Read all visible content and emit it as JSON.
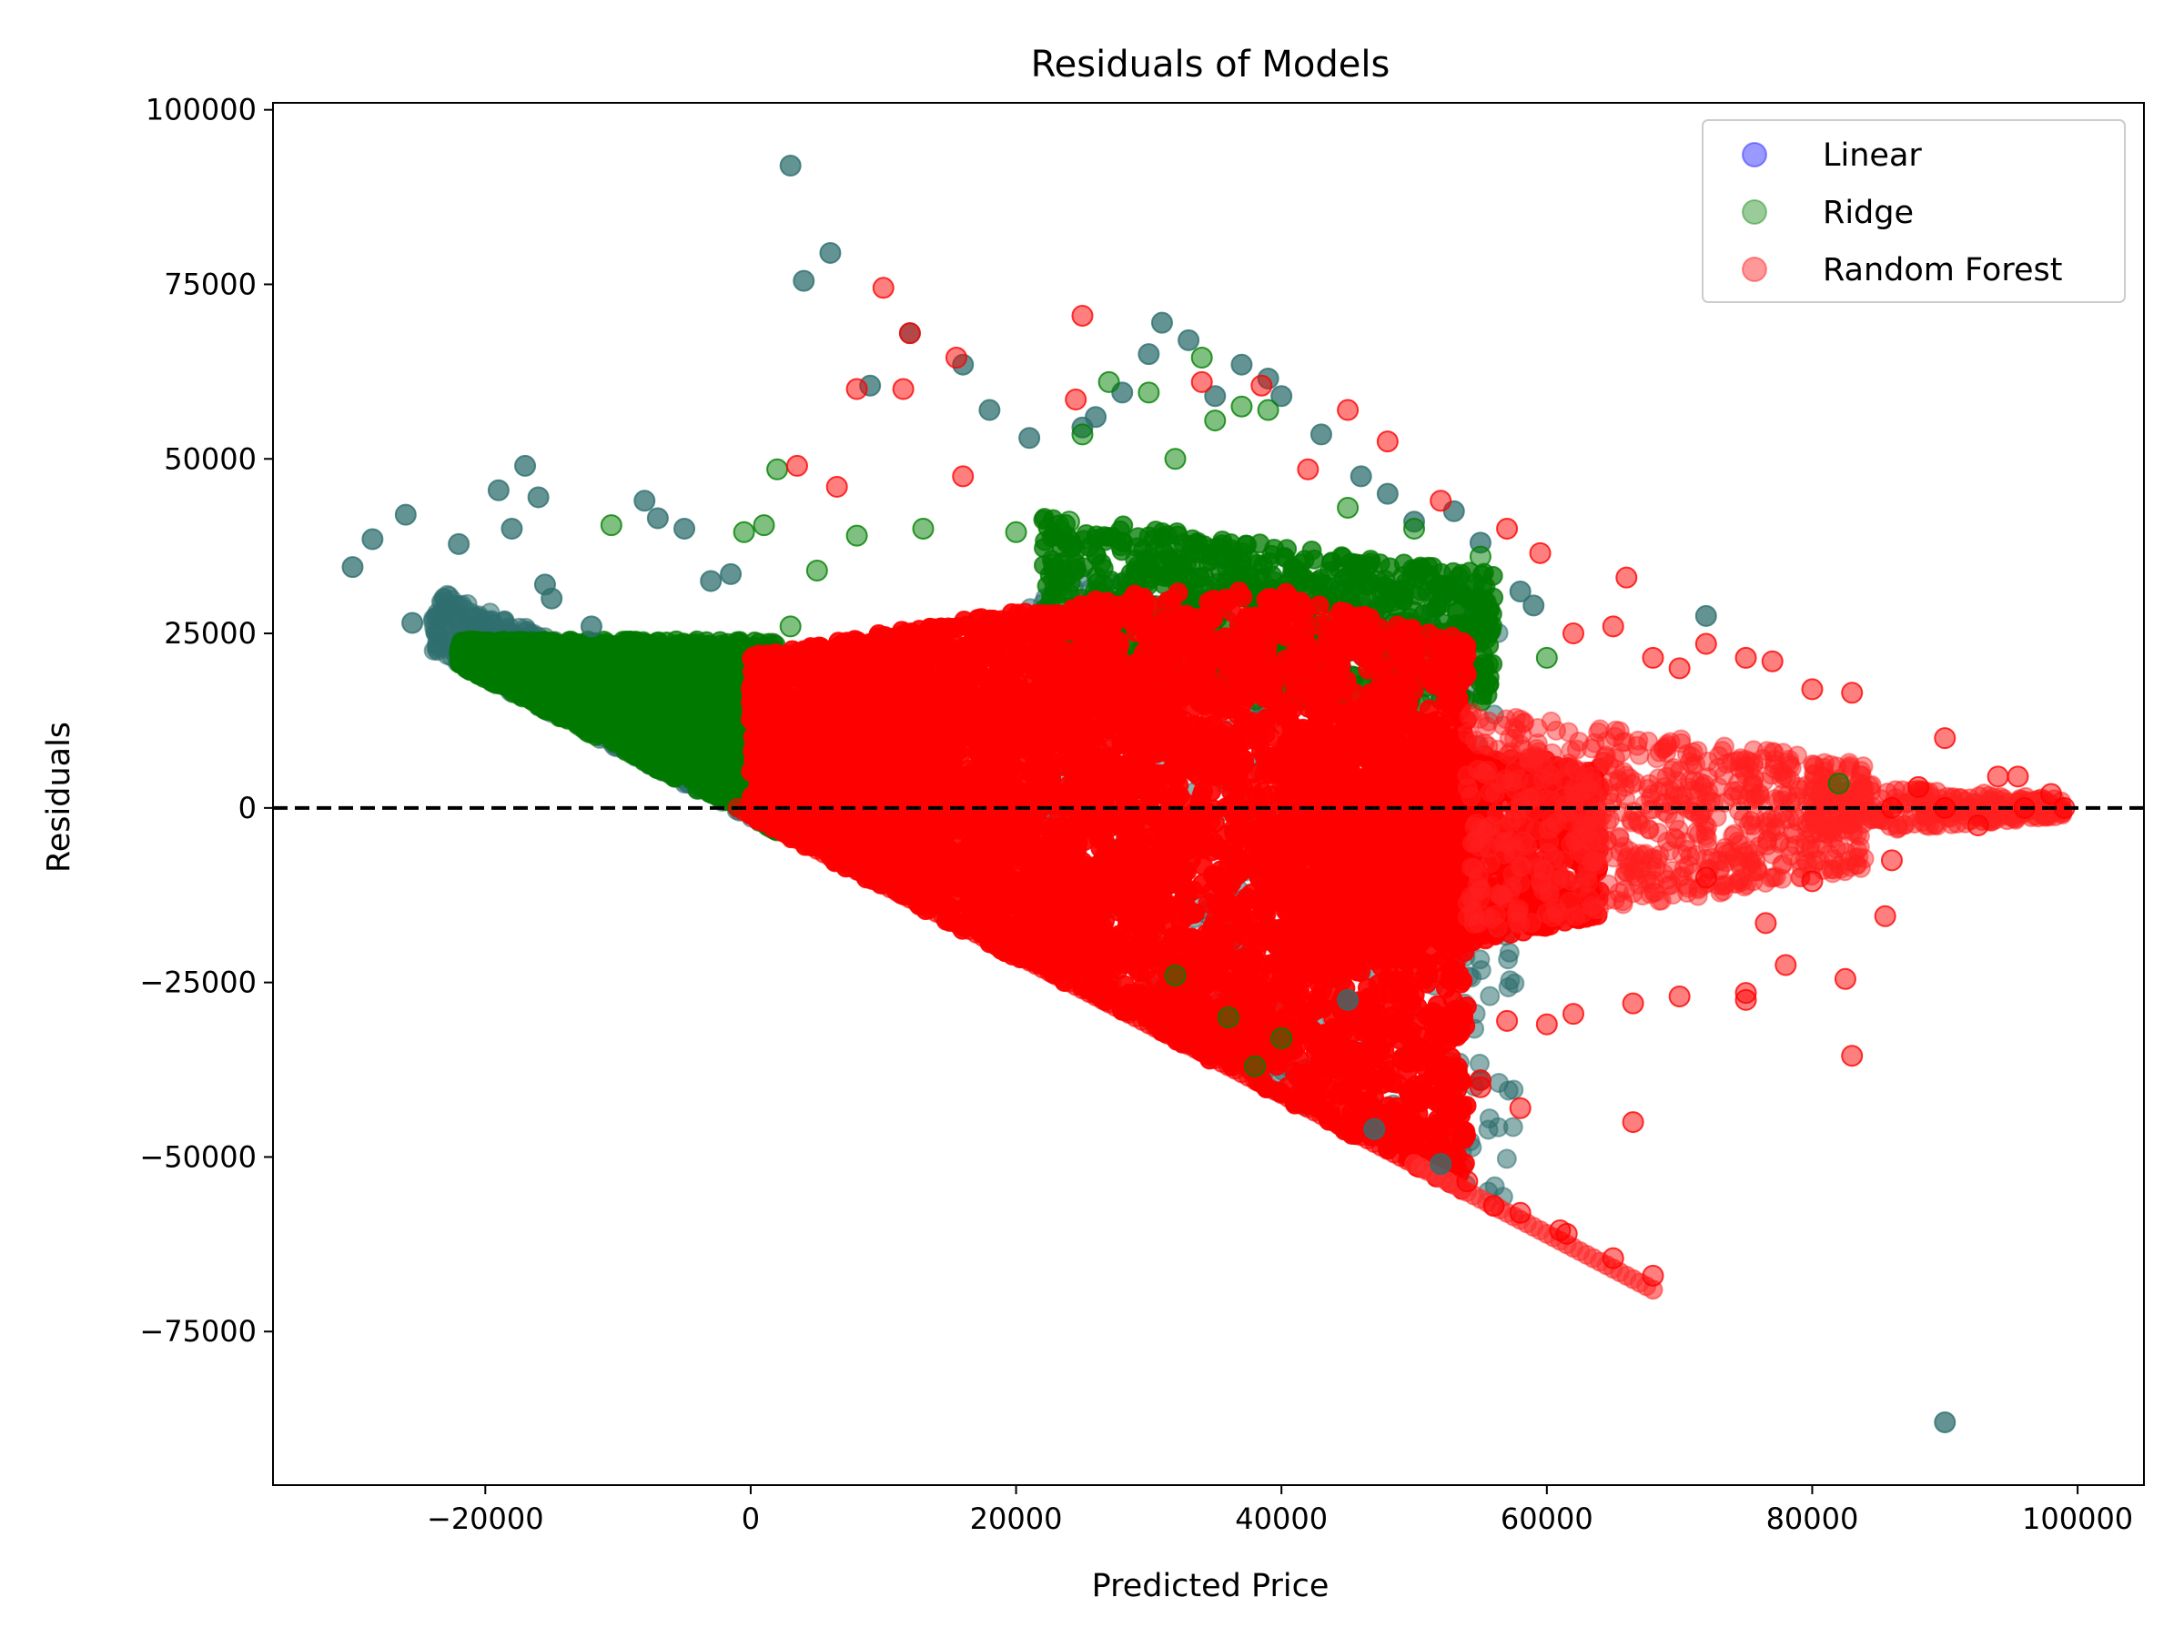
{
  "chart_data": {
    "type": "scatter",
    "title": "Residuals of Models",
    "xlabel": "Predicted Price",
    "ylabel": "Residuals",
    "xlim": [
      -36000,
      105000
    ],
    "ylim": [
      -97000,
      101000
    ],
    "xticks": [
      -20000,
      0,
      20000,
      40000,
      60000,
      80000,
      100000
    ],
    "xtick_labels": [
      "−20000",
      "0",
      "20000",
      "40000",
      "60000",
      "80000",
      "100000"
    ],
    "yticks": [
      -75000,
      -50000,
      -25000,
      0,
      25000,
      50000,
      75000,
      100000
    ],
    "ytick_labels": [
      "−75000",
      "−50000",
      "−25000",
      "0",
      "25000",
      "50000",
      "75000",
      "100000"
    ],
    "reference_line": {
      "y": 0,
      "style": "dashed",
      "color": "#000000"
    },
    "grid": false,
    "legend_position": "top-right",
    "series": [
      {
        "name": "Linear",
        "color": "#0000ff",
        "alpha": 0.4,
        "points": [
          [
            -30000,
            34500
          ],
          [
            -28500,
            38500
          ],
          [
            -26000,
            42000
          ],
          [
            -25500,
            26500
          ],
          [
            -22000,
            37800
          ],
          [
            -19000,
            45500
          ],
          [
            -18000,
            40000
          ],
          [
            -17000,
            49000
          ],
          [
            -16000,
            44500
          ],
          [
            -15500,
            32000
          ],
          [
            -15000,
            30000
          ],
          [
            -12000,
            26000
          ],
          [
            -8000,
            44000
          ],
          [
            -7000,
            41500
          ],
          [
            -5000,
            40000
          ],
          [
            -3000,
            32500
          ],
          [
            -1500,
            33500
          ],
          [
            3000,
            92000
          ],
          [
            4000,
            75500
          ],
          [
            6000,
            79500
          ],
          [
            9000,
            60500
          ],
          [
            12000,
            68000
          ],
          [
            16000,
            63500
          ],
          [
            18000,
            57000
          ],
          [
            21000,
            53000
          ],
          [
            25000,
            54500
          ],
          [
            26000,
            56000
          ],
          [
            28000,
            59500
          ],
          [
            30000,
            65000
          ],
          [
            31000,
            69500
          ],
          [
            33000,
            67000
          ],
          [
            35000,
            59000
          ],
          [
            37000,
            63500
          ],
          [
            39000,
            61500
          ],
          [
            40000,
            59000
          ],
          [
            43000,
            53500
          ],
          [
            46000,
            47500
          ],
          [
            48000,
            45000
          ],
          [
            50000,
            41000
          ],
          [
            53000,
            42500
          ],
          [
            55000,
            38000
          ],
          [
            58000,
            31000
          ],
          [
            59000,
            29000
          ],
          [
            72000,
            27500
          ],
          [
            90000,
            -88000
          ],
          [
            45000,
            -27500
          ],
          [
            52000,
            -51000
          ],
          [
            47000,
            -46000
          ]
        ]
      },
      {
        "name": "Ridge",
        "color": "#008000",
        "alpha": 0.4,
        "points": [
          [
            -10500,
            40500
          ],
          [
            2000,
            48500
          ],
          [
            -500,
            39500
          ],
          [
            1000,
            40500
          ],
          [
            3000,
            26000
          ],
          [
            5000,
            34000
          ],
          [
            8000,
            39000
          ],
          [
            13000,
            40000
          ],
          [
            20000,
            39500
          ],
          [
            24000,
            41000
          ],
          [
            25000,
            53500
          ],
          [
            27000,
            61000
          ],
          [
            30000,
            59500
          ],
          [
            32000,
            50000
          ],
          [
            34000,
            64500
          ],
          [
            35000,
            55500
          ],
          [
            37000,
            57500
          ],
          [
            39000,
            57000
          ],
          [
            45000,
            43000
          ],
          [
            50000,
            40000
          ],
          [
            55000,
            36000
          ],
          [
            60000,
            21500
          ],
          [
            82000,
            3500
          ],
          [
            38000,
            -37000
          ],
          [
            36000,
            -30000
          ],
          [
            32000,
            -24000
          ],
          [
            40000,
            -33000
          ]
        ]
      },
      {
        "name": "Random Forest",
        "color": "#ff0000",
        "alpha": 0.4,
        "points": [
          [
            10000,
            74500
          ],
          [
            12000,
            68000
          ],
          [
            11500,
            60000
          ],
          [
            15500,
            64500
          ],
          [
            16000,
            47500
          ],
          [
            8000,
            60000
          ],
          [
            3500,
            49000
          ],
          [
            6500,
            46000
          ],
          [
            25000,
            70500
          ],
          [
            24500,
            58500
          ],
          [
            34000,
            61000
          ],
          [
            38500,
            60500
          ],
          [
            45000,
            57000
          ],
          [
            48000,
            52500
          ],
          [
            42000,
            48500
          ],
          [
            52000,
            44000
          ],
          [
            57000,
            40000
          ],
          [
            59500,
            36500
          ],
          [
            62000,
            25000
          ],
          [
            65000,
            26000
          ],
          [
            66000,
            33000
          ],
          [
            68000,
            21500
          ],
          [
            70000,
            20000
          ],
          [
            72000,
            23500
          ],
          [
            75000,
            21500
          ],
          [
            77000,
            21000
          ],
          [
            80000,
            17000
          ],
          [
            83000,
            16500
          ],
          [
            90000,
            10000
          ],
          [
            94000,
            4500
          ],
          [
            95500,
            4500
          ],
          [
            98000,
            2000
          ],
          [
            99000,
            0
          ],
          [
            96000,
            0
          ],
          [
            92500,
            -2500
          ],
          [
            86000,
            -7500
          ],
          [
            85500,
            -15500
          ],
          [
            82500,
            -24500
          ],
          [
            83000,
            -35500
          ],
          [
            78000,
            -22500
          ],
          [
            76500,
            -16500
          ],
          [
            75000,
            -26500
          ],
          [
            75000,
            -27500
          ],
          [
            70000,
            -27000
          ],
          [
            66500,
            -28000
          ],
          [
            66500,
            -45000
          ],
          [
            62000,
            -29500
          ],
          [
            60000,
            -31000
          ],
          [
            57000,
            -30500
          ],
          [
            55000,
            -39000
          ],
          [
            55000,
            -40000
          ],
          [
            58000,
            -43000
          ],
          [
            54000,
            -53500
          ],
          [
            56000,
            -57000
          ],
          [
            58000,
            -58000
          ],
          [
            61000,
            -60500
          ],
          [
            61500,
            -61000
          ],
          [
            65000,
            -64500
          ],
          [
            68000,
            -67000
          ],
          [
            47000,
            -37000
          ],
          [
            47500,
            -39500
          ],
          [
            45000,
            -41000
          ],
          [
            43000,
            -35000
          ],
          [
            80000,
            -10500
          ],
          [
            72000,
            -10000
          ],
          [
            88000,
            3000
          ],
          [
            86000,
            0
          ],
          [
            90000,
            0
          ]
        ]
      }
    ]
  }
}
